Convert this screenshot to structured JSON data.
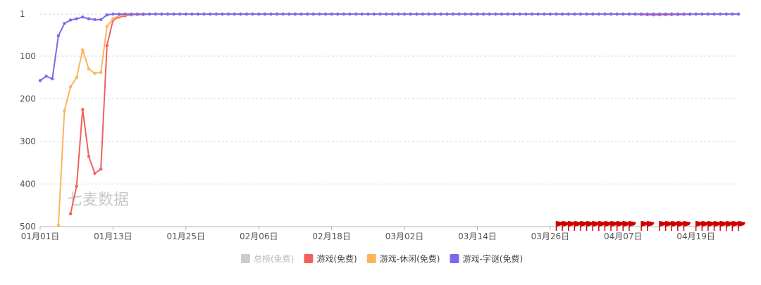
{
  "chart_data": {
    "type": "line",
    "y_inverted": true,
    "ylim": [
      1,
      500
    ],
    "y_ticks": [
      "1",
      "100",
      "200",
      "300",
      "400",
      "500"
    ],
    "x_tick_labels": [
      "01月01日",
      "01月13日",
      "01月25日",
      "02月06日",
      "02月18日",
      "03月02日",
      "03月14日",
      "03月26日",
      "04月07日",
      "04月19日"
    ],
    "grid": true,
    "legend_position": "bottom-center",
    "watermark": "七麦数据",
    "flag_color": "#cc0000",
    "series": [
      {
        "name": "总榜(免费)",
        "color": "#cccccc",
        "enabled": false,
        "x": [],
        "y": []
      },
      {
        "name": "游戏(免费)",
        "color": "#f0625b",
        "enabled": true,
        "x": [
          "01-06",
          "01-07",
          "01-08",
          "01-09",
          "01-10",
          "01-11",
          "01-12",
          "01-13",
          "01-14",
          "01-15",
          "01-16",
          "01-17",
          "01-18",
          "01-19",
          "01-20",
          "01-25",
          "02-06",
          "02-18",
          "03-02",
          "03-14",
          "03-26",
          "04-07",
          "04-11",
          "04-19",
          "04-25"
        ],
        "y": [
          470,
          405,
          225,
          335,
          375,
          365,
          75,
          15,
          8,
          5,
          3,
          2,
          2,
          1,
          1,
          1,
          1,
          1,
          1,
          1,
          1,
          1,
          3,
          1,
          1
        ]
      },
      {
        "name": "游戏-休闲(免费)",
        "color": "#fdb45c",
        "enabled": true,
        "x": [
          "01-04",
          "01-05",
          "01-06",
          "01-07",
          "01-08",
          "01-09",
          "01-10",
          "01-11",
          "01-12",
          "01-13",
          "01-14",
          "01-15",
          "01-16",
          "01-17",
          "01-18",
          "01-25",
          "02-06",
          "02-18",
          "03-02",
          "03-14",
          "03-26",
          "04-07",
          "04-19",
          "04-25"
        ],
        "y": [
          497,
          228,
          172,
          150,
          85,
          130,
          140,
          138,
          30,
          12,
          5,
          3,
          2,
          1,
          1,
          1,
          1,
          1,
          1,
          1,
          1,
          1,
          1,
          1
        ]
      },
      {
        "name": "游戏-字谜(免费)",
        "color": "#7b68ee",
        "enabled": true,
        "x": [
          "01-01",
          "01-02",
          "01-03",
          "01-04",
          "01-05",
          "01-06",
          "01-07",
          "01-08",
          "01-09",
          "01-10",
          "01-11",
          "01-12",
          "01-13",
          "01-14",
          "01-15",
          "01-20",
          "01-25",
          "02-06",
          "02-18",
          "03-02",
          "03-14",
          "03-26",
          "04-07",
          "04-19",
          "04-25"
        ],
        "y": [
          157,
          147,
          153,
          52,
          23,
          15,
          12,
          8,
          12,
          14,
          14,
          3,
          1,
          1,
          1,
          1,
          1,
          1,
          1,
          1,
          1,
          1,
          1,
          1,
          1
        ]
      }
    ],
    "flag_dates": [
      "03-26",
      "03-27",
      "03-28",
      "03-29",
      "03-30",
      "03-31",
      "04-01",
      "04-02",
      "04-03",
      "04-04",
      "04-05",
      "04-06",
      "04-07",
      "04-09",
      "04-10",
      "04-12",
      "04-13",
      "04-14",
      "04-15",
      "04-16",
      "04-18",
      "04-19",
      "04-20",
      "04-21",
      "04-22",
      "04-23",
      "04-24",
      "04-25"
    ]
  }
}
